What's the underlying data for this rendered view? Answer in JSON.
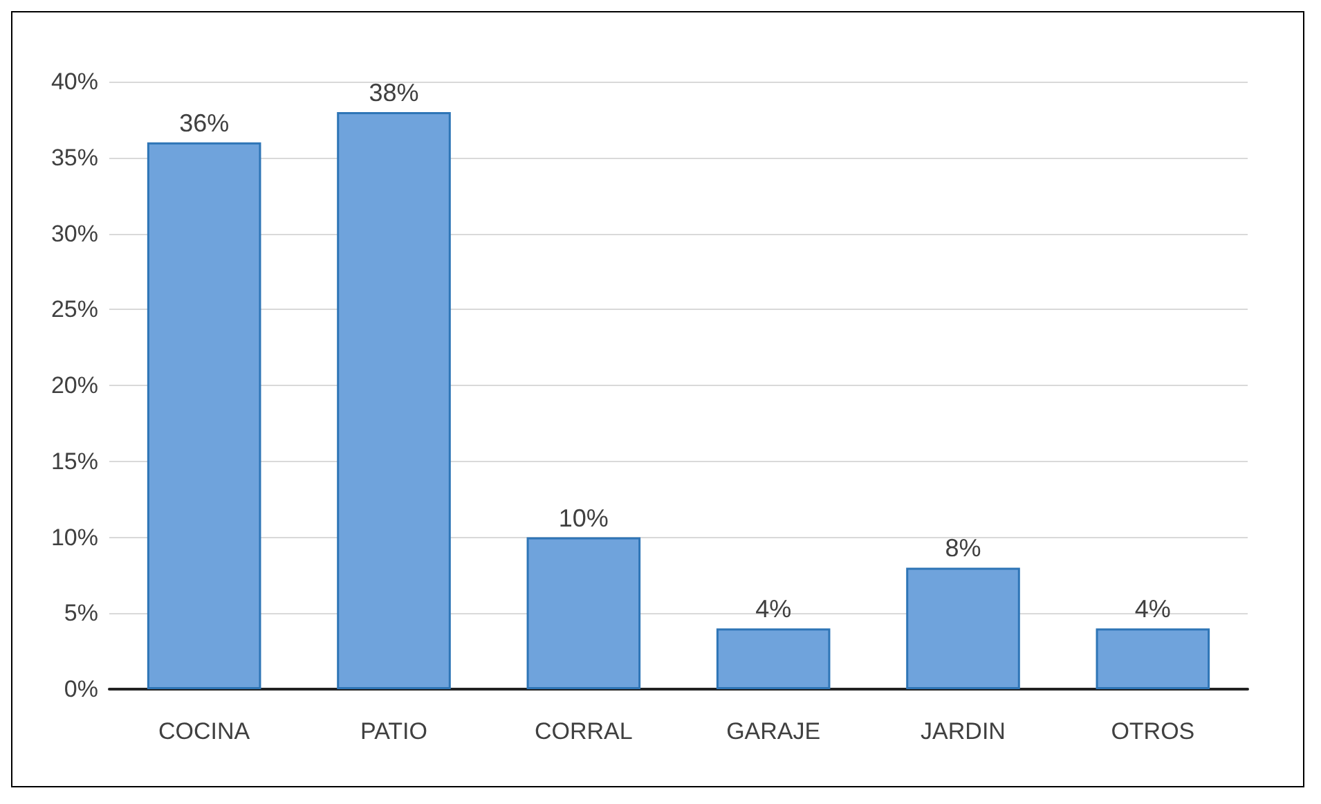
{
  "chart_data": {
    "type": "bar",
    "categories": [
      "COCINA",
      "PATIO",
      "CORRAL",
      "GARAJE",
      "JARDIN",
      "OTROS"
    ],
    "values": [
      36,
      38,
      10,
      4,
      8,
      4
    ],
    "value_labels": [
      "36%",
      "38%",
      "10%",
      "4%",
      "8%",
      "4%"
    ],
    "color": "#6fa3dc",
    "ylim": [
      0,
      40
    ],
    "yticks": [
      {
        "value": 0,
        "label": "0%"
      },
      {
        "value": 5,
        "label": "5%"
      },
      {
        "value": 10,
        "label": "10%"
      },
      {
        "value": 15,
        "label": "15%"
      },
      {
        "value": 20,
        "label": "20%"
      },
      {
        "value": 25,
        "label": "25%"
      },
      {
        "value": 30,
        "label": "30%"
      },
      {
        "value": 35,
        "label": "35%"
      },
      {
        "value": 40,
        "label": "40%"
      }
    ],
    "grid": "y"
  }
}
